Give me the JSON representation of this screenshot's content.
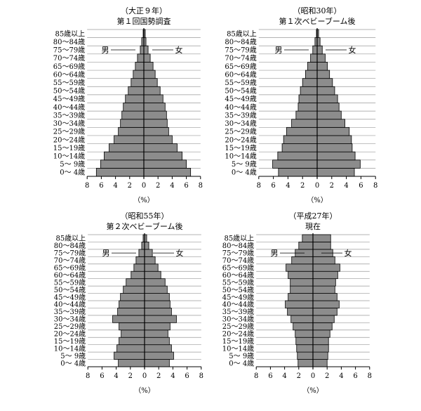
{
  "chart_data": [
    {
      "type": "bar",
      "title": "（大正９年）",
      "subtitle": "第１回国勢調査",
      "categories": [
        "0〜 4歳",
        "5〜 9歳",
        "10〜14歳",
        "15〜19歳",
        "20〜24歳",
        "25〜29歳",
        "30〜34歳",
        "35〜39歳",
        "40〜44歳",
        "45〜49歳",
        "50〜54歳",
        "55〜59歳",
        "60〜64歳",
        "65〜69歳",
        "70〜74歳",
        "75〜79歳",
        "80〜84歳",
        "85歳以上"
      ],
      "series": [
        {
          "name": "男",
          "values": [
            6.7,
            6.1,
            5.6,
            4.9,
            4.2,
            3.6,
            3.3,
            3.1,
            2.9,
            2.6,
            2.2,
            1.8,
            1.5,
            1.2,
            0.9,
            0.5,
            0.3,
            0.1
          ]
        },
        {
          "name": "女",
          "values": [
            6.6,
            6.0,
            5.4,
            4.7,
            4.0,
            3.5,
            3.3,
            3.2,
            3.0,
            2.7,
            2.3,
            1.9,
            1.6,
            1.3,
            0.9,
            0.6,
            0.3,
            0.2
          ]
        }
      ],
      "xticks": [
        "8",
        "6",
        "4",
        "2",
        "0",
        "2",
        "4",
        "6",
        "8"
      ],
      "xlim": [
        0,
        8
      ],
      "xlabel": "（%）"
    },
    {
      "type": "bar",
      "title": "（昭和30年）",
      "subtitle": "第１次ベビーブーム後",
      "categories": [
        "0〜 4歳",
        "5〜 9歳",
        "10〜14歳",
        "15〜19歳",
        "20〜24歳",
        "25〜29歳",
        "30〜34歳",
        "35〜39歳",
        "40〜44歳",
        "45〜49歳",
        "50〜54歳",
        "55〜59歳",
        "60〜64歳",
        "65〜69歳",
        "70〜74歳",
        "75〜79歳",
        "80〜84歳",
        "85歳以上"
      ],
      "series": [
        {
          "name": "男",
          "values": [
            5.3,
            6.1,
            5.4,
            4.8,
            4.6,
            4.2,
            3.5,
            2.9,
            2.6,
            2.5,
            2.3,
            2.0,
            1.6,
            1.3,
            0.9,
            0.6,
            0.3,
            0.1
          ]
        },
        {
          "name": "女",
          "values": [
            5.1,
            5.9,
            5.2,
            4.8,
            4.7,
            4.4,
            3.8,
            3.3,
            3.0,
            2.8,
            2.4,
            2.1,
            1.7,
            1.4,
            1.1,
            0.7,
            0.4,
            0.2
          ]
        }
      ],
      "xticks": [
        "8",
        "6",
        "4",
        "2",
        "0",
        "2",
        "4",
        "6",
        "8"
      ],
      "xlim": [
        0,
        8
      ],
      "xlabel": "（%）"
    },
    {
      "type": "bar",
      "title": "（昭和55年）",
      "subtitle": "第２次ベビーブーム後",
      "categories": [
        "0〜 4歳",
        "5〜 9歳",
        "10〜14歳",
        "15〜19歳",
        "20〜24歳",
        "25〜29歳",
        "30〜34歳",
        "35〜39歳",
        "40〜44歳",
        "45〜49歳",
        "50〜54歳",
        "55〜59歳",
        "60〜64歳",
        "65〜69歳",
        "70〜74歳",
        "75〜79歳",
        "80〜84歳",
        "85歳以上"
      ],
      "series": [
        {
          "name": "男",
          "values": [
            3.7,
            4.3,
            3.9,
            3.6,
            3.3,
            3.6,
            4.5,
            3.8,
            3.6,
            3.4,
            3.0,
            2.6,
            1.9,
            1.5,
            1.2,
            0.8,
            0.4,
            0.2
          ]
        },
        {
          "name": "女",
          "values": [
            3.5,
            4.1,
            3.8,
            3.5,
            3.3,
            3.6,
            4.5,
            3.8,
            3.6,
            3.5,
            3.2,
            2.9,
            2.3,
            1.9,
            1.5,
            1.1,
            0.6,
            0.3
          ]
        }
      ],
      "xticks": [
        "8",
        "6",
        "4",
        "2",
        "0",
        "2",
        "4",
        "6",
        "8"
      ],
      "xlim": [
        0,
        8
      ],
      "xlabel": "（%）"
    },
    {
      "type": "bar",
      "title": "（平成27年）",
      "subtitle": "現在",
      "categories": [
        "0〜 4歳",
        "5〜 9歳",
        "10〜14歳",
        "15〜19歳",
        "20〜24歳",
        "25〜29歳",
        "30〜34歳",
        "35〜39歳",
        "40〜44歳",
        "45〜49歳",
        "50〜54歳",
        "55〜59歳",
        "60〜64歳",
        "65〜69歳",
        "70〜74歳",
        "75〜79歳",
        "80〜84歳",
        "85歳以上"
      ],
      "series": [
        {
          "name": "男",
          "values": [
            2.1,
            2.2,
            2.3,
            2.4,
            2.5,
            2.8,
            3.1,
            3.6,
            3.9,
            3.5,
            3.2,
            3.2,
            3.5,
            3.8,
            3.0,
            2.5,
            2.0,
            1.5
          ]
        },
        {
          "name": "女",
          "values": [
            2.0,
            2.1,
            2.2,
            2.2,
            2.4,
            2.7,
            3.0,
            3.4,
            3.7,
            3.4,
            3.1,
            3.2,
            3.5,
            3.8,
            3.1,
            2.8,
            2.5,
            2.5
          ]
        }
      ],
      "xticks": [
        "8",
        "6",
        "4",
        "2",
        "0",
        "2",
        "4",
        "6",
        "8"
      ],
      "xlim": [
        0,
        8
      ],
      "xlabel": "（%）"
    }
  ]
}
